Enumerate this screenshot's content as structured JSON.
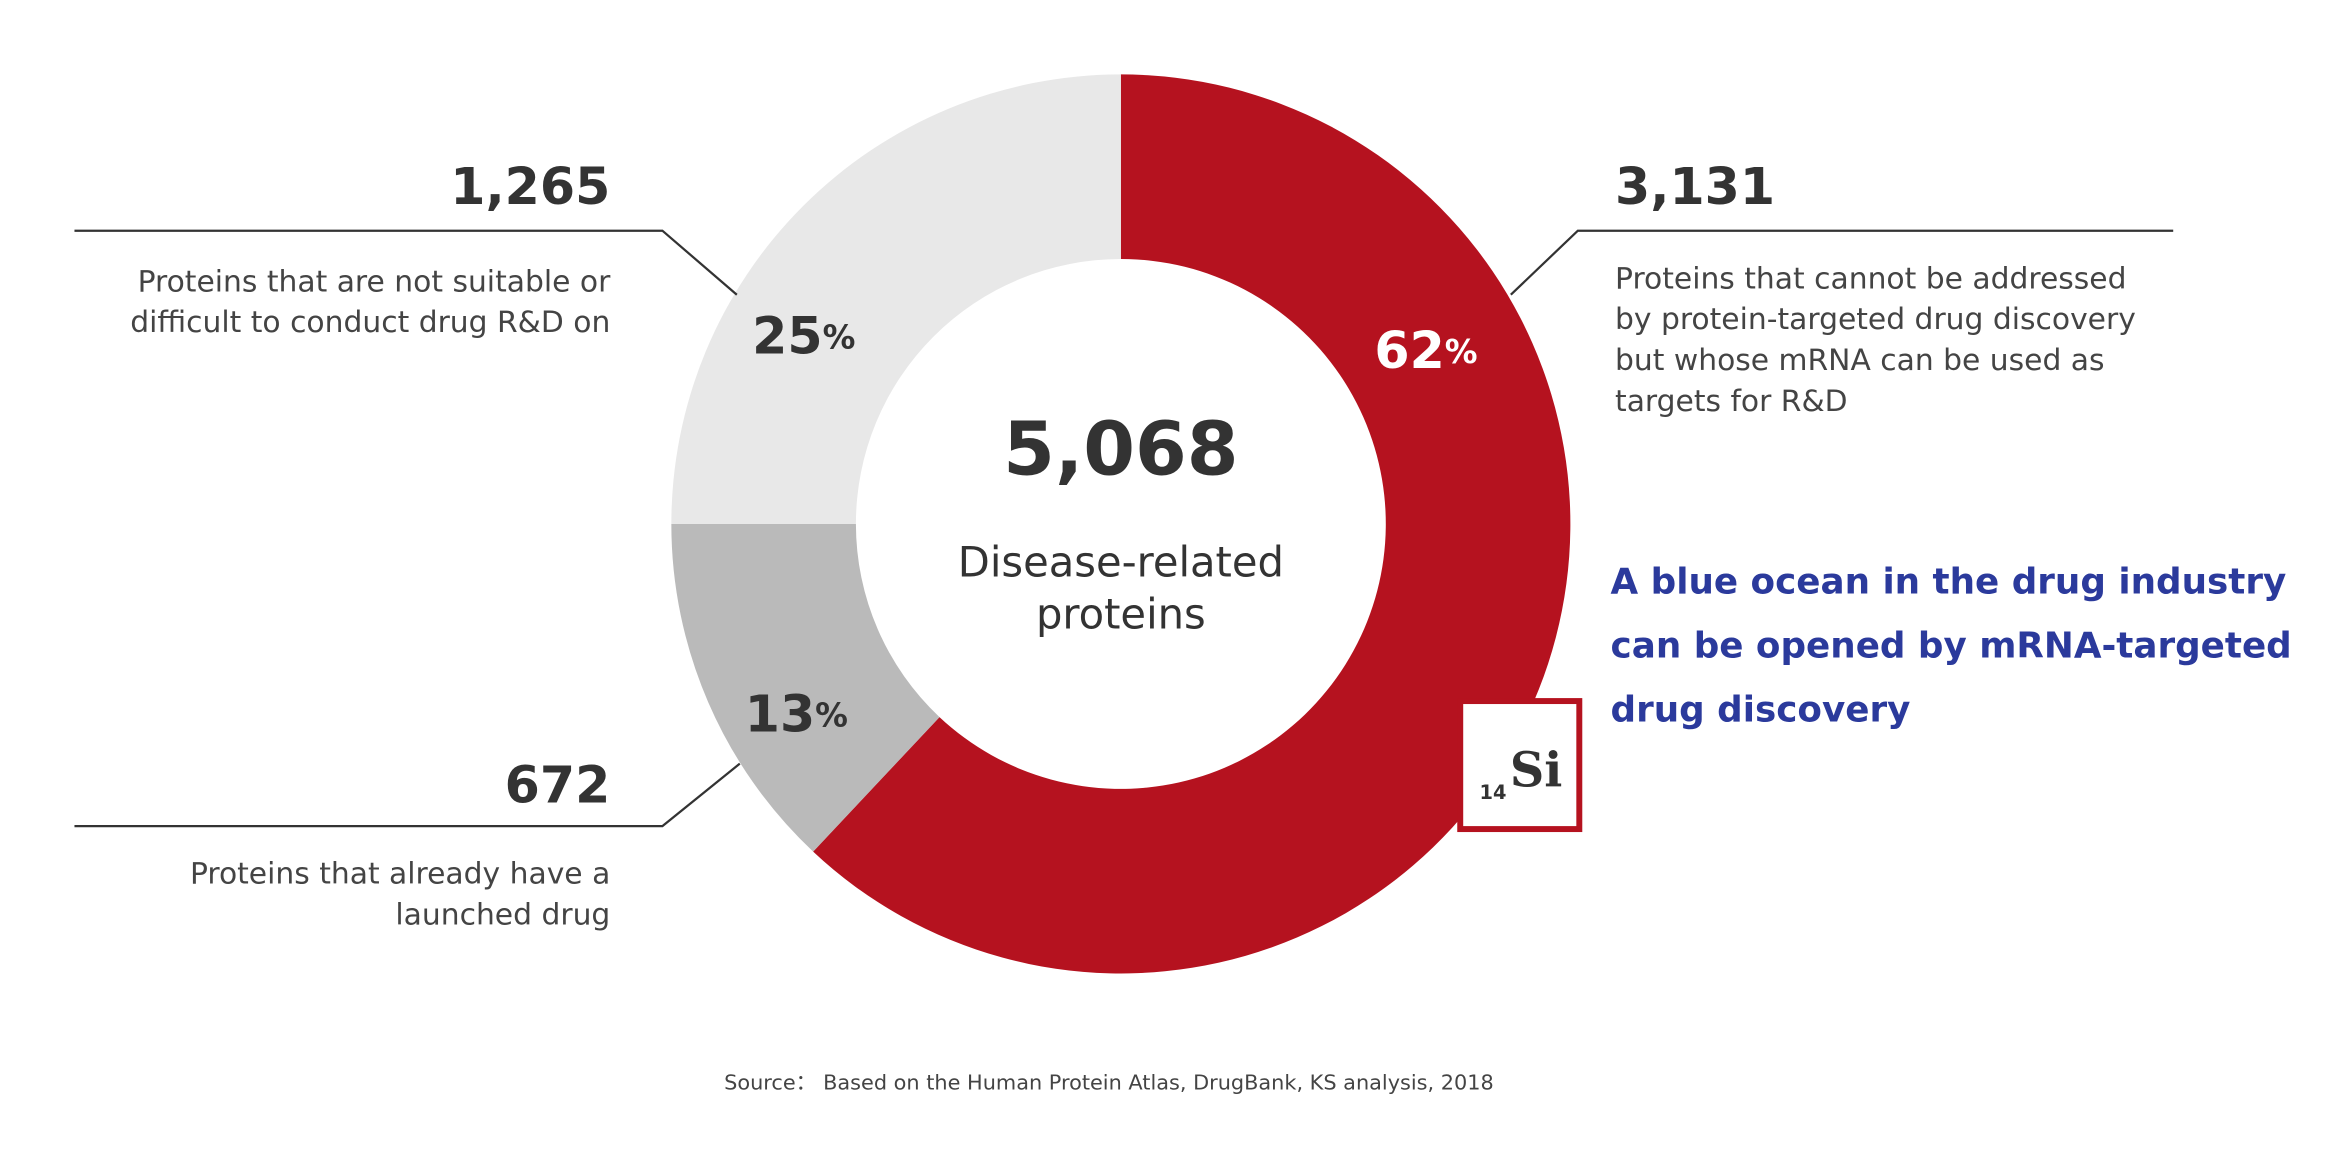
{
  "chart_data": {
    "type": "pie",
    "donut": true,
    "values": [
      62,
      13,
      25
    ],
    "value_labels": [
      "62%",
      "13%",
      "25%"
    ],
    "colors": [
      "#b5121f",
      "#bababa",
      "#e8e8e8"
    ],
    "start_angle": 0,
    "direction": "clockwise",
    "center_value": "5,068",
    "center_text": [
      "Disease-related",
      "proteins"
    ],
    "annotations": [
      {
        "count": "3,131",
        "lines": [
          "Proteins that cannot be addressed",
          "by protein-targeted drug discovery",
          "but whose mRNA can be used as",
          "targets for R&D"
        ]
      },
      {
        "count": "672",
        "lines": [
          "Proteins that already have a",
          "launched drug"
        ]
      },
      {
        "count": "1,265",
        "lines": [
          "Proteins that are not suitable or",
          "difficult to conduct drug  R&D on"
        ]
      }
    ],
    "highlight": [
      "A blue ocean in the drug industry",
      "can be opened by mRNA-targeted",
      "drug discovery"
    ],
    "badge": {
      "number": "14",
      "symbol": "Si"
    },
    "source": "Source： Based on the Human Protein Atlas, DrugBank, KS analysis, 2018"
  }
}
